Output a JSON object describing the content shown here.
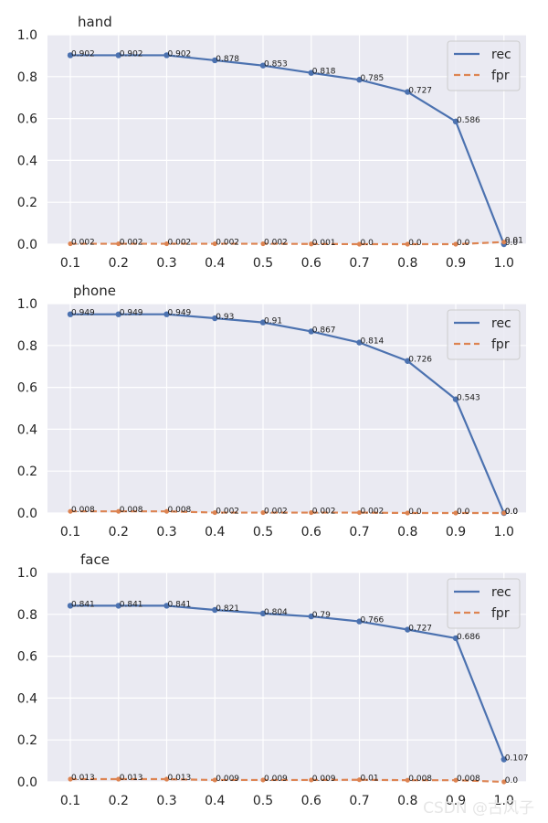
{
  "watermark": "CSDN @古风子",
  "colors": {
    "rec": "#4c72b0",
    "fpr": "#dd8452",
    "plot_bg": "#eaeaf2",
    "grid": "#ffffff",
    "text": "#262626"
  },
  "chart_data": [
    {
      "type": "line",
      "title": "hand",
      "x": [
        0.1,
        0.2,
        0.3,
        0.4,
        0.5,
        0.6,
        0.7,
        0.8,
        0.9,
        1.0
      ],
      "x_tick_labels": [
        "0.1",
        "0.2",
        "0.3",
        "0.4",
        "0.5",
        "0.6",
        "0.7",
        "0.8",
        "0.9",
        "1.0"
      ],
      "y_tick_labels": [
        "0.0",
        "0.2",
        "0.4",
        "0.6",
        "0.8",
        "1.0"
      ],
      "ylim": [
        0,
        1
      ],
      "grid": true,
      "legend": "upper-right",
      "series": [
        {
          "name": "rec",
          "style": "solid",
          "values": [
            0.902,
            0.902,
            0.902,
            0.878,
            0.853,
            0.818,
            0.785,
            0.727,
            0.586,
            0.0
          ],
          "labels": [
            "0.902",
            "0.902",
            "0.902",
            "0.878",
            "0.853",
            "0.818",
            "0.785",
            "0.727",
            "0.586",
            "0.0"
          ]
        },
        {
          "name": "fpr",
          "style": "dashed",
          "values": [
            0.002,
            0.002,
            0.002,
            0.002,
            0.002,
            0.001,
            0.0,
            0.0,
            0.0,
            0.01
          ],
          "labels": [
            "0.002",
            "0.002",
            "0.002",
            "0.002",
            "0.002",
            "0.001",
            "0.0",
            "0.0",
            "0.0",
            "0.01"
          ]
        }
      ]
    },
    {
      "type": "line",
      "title": "phone",
      "x": [
        0.1,
        0.2,
        0.3,
        0.4,
        0.5,
        0.6,
        0.7,
        0.8,
        0.9,
        1.0
      ],
      "x_tick_labels": [
        "0.1",
        "0.2",
        "0.3",
        "0.4",
        "0.5",
        "0.6",
        "0.7",
        "0.8",
        "0.9",
        "1.0"
      ],
      "y_tick_labels": [
        "0.0",
        "0.2",
        "0.4",
        "0.6",
        "0.8",
        "1.0"
      ],
      "ylim": [
        0,
        1
      ],
      "grid": true,
      "legend": "upper-right",
      "series": [
        {
          "name": "rec",
          "style": "solid",
          "values": [
            0.949,
            0.949,
            0.949,
            0.93,
            0.91,
            0.867,
            0.814,
            0.726,
            0.543,
            0.0
          ],
          "labels": [
            "0.949",
            "0.949",
            "0.949",
            "0.93",
            "0.91",
            "0.867",
            "0.814",
            "0.726",
            "0.543",
            "0.0"
          ]
        },
        {
          "name": "fpr",
          "style": "dashed",
          "values": [
            0.008,
            0.008,
            0.008,
            0.002,
            0.002,
            0.002,
            0.002,
            0.0,
            0.0,
            0.0
          ],
          "labels": [
            "0.008",
            "0.008",
            "0.008",
            "0.002",
            "0.002",
            "0.002",
            "0.002",
            "0.0",
            "0.0",
            "0.0"
          ]
        }
      ]
    },
    {
      "type": "line",
      "title": "face",
      "x": [
        0.1,
        0.2,
        0.3,
        0.4,
        0.5,
        0.6,
        0.7,
        0.8,
        0.9,
        1.0
      ],
      "x_tick_labels": [
        "0.1",
        "0.2",
        "0.3",
        "0.4",
        "0.5",
        "0.6",
        "0.7",
        "0.8",
        "0.9",
        "1.0"
      ],
      "y_tick_labels": [
        "0.0",
        "0.2",
        "0.4",
        "0.6",
        "0.8",
        "1.0"
      ],
      "ylim": [
        0,
        1
      ],
      "grid": true,
      "legend": "upper-right",
      "series": [
        {
          "name": "rec",
          "style": "solid",
          "values": [
            0.841,
            0.841,
            0.841,
            0.821,
            0.804,
            0.79,
            0.766,
            0.727,
            0.686,
            0.107
          ],
          "labels": [
            "0.841",
            "0.841",
            "0.841",
            "0.821",
            "0.804",
            "0.79",
            "0.766",
            "0.727",
            "0.686",
            "0.107"
          ]
        },
        {
          "name": "fpr",
          "style": "dashed",
          "values": [
            0.013,
            0.013,
            0.013,
            0.009,
            0.009,
            0.009,
            0.01,
            0.008,
            0.008,
            0.0
          ],
          "labels": [
            "0.013",
            "0.013",
            "0.013",
            "0.009",
            "0.009",
            "0.009",
            "0.01",
            "0.008",
            "0.008",
            "0.0"
          ]
        }
      ]
    }
  ]
}
